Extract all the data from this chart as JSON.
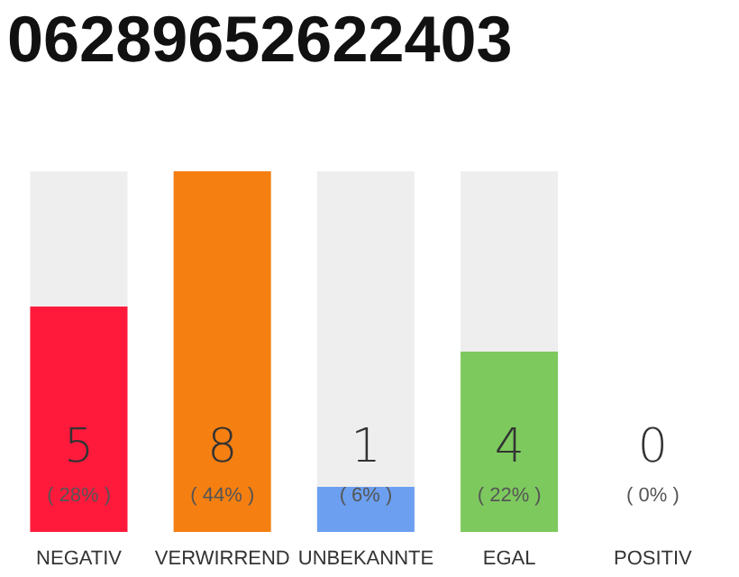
{
  "chart_data": {
    "type": "bar",
    "title": "06289652622403",
    "categories": [
      "NEGATIV",
      "VERWIRREND",
      "UNBEKANNTE",
      "EGAL",
      "POSITIV"
    ],
    "values": [
      5,
      8,
      1,
      4,
      0
    ],
    "colors": [
      "#ff1a3c",
      "#f57f11",
      "#6c9ff0",
      "#7dc95e",
      "#cccccc"
    ],
    "ylim": [
      0,
      8
    ],
    "tick_labels": "x",
    "data_labels": true,
    "annotations": [
      "( 28% )",
      "( 44% )",
      "( 6% )",
      "( 22% )",
      "( 0% )"
    ]
  }
}
